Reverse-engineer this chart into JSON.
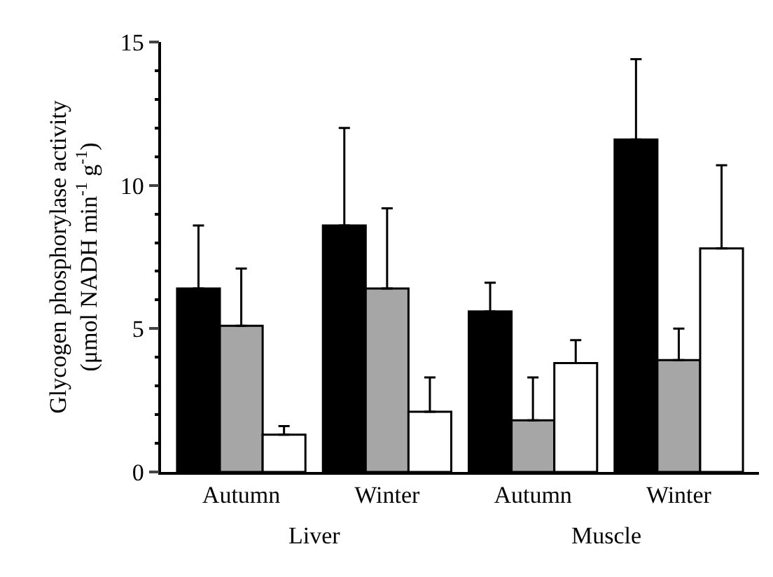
{
  "chart_data": {
    "type": "bar",
    "ylabel": "Glycogen phosphorylase activity\n(μmol NADH min$^{-1}$ g$^{-1}$)",
    "categories": [
      "Autumn",
      "Winter",
      "Autumn",
      "Winter"
    ],
    "annotations": [
      "Liver",
      "Muscle"
    ],
    "ylim": [
      0,
      15
    ],
    "yticks": [
      0,
      5,
      10,
      15
    ],
    "grid": false,
    "series": [
      {
        "color": "#000000",
        "values": [
          6.4,
          8.6,
          5.6,
          11.6
        ],
        "errors": [
          [
            6.4,
            8.6
          ],
          [
            8.6,
            12.0
          ],
          [
            5.6,
            6.6
          ],
          [
            11.6,
            14.4
          ]
        ]
      },
      {
        "color": "#a6a6a6",
        "values": [
          5.1,
          6.4,
          1.8,
          3.9
        ],
        "errors": [
          [
            5.1,
            7.1
          ],
          [
            6.4,
            9.2
          ],
          [
            1.8,
            3.3
          ],
          [
            3.9,
            5.0
          ]
        ]
      },
      {
        "color": "#ffffff",
        "values": [
          1.3,
          2.1,
          3.8,
          7.8
        ],
        "errors": [
          [
            1.3,
            1.6
          ],
          [
            2.1,
            3.3
          ],
          [
            3.8,
            4.6
          ],
          [
            7.8,
            10.7
          ]
        ]
      }
    ]
  }
}
